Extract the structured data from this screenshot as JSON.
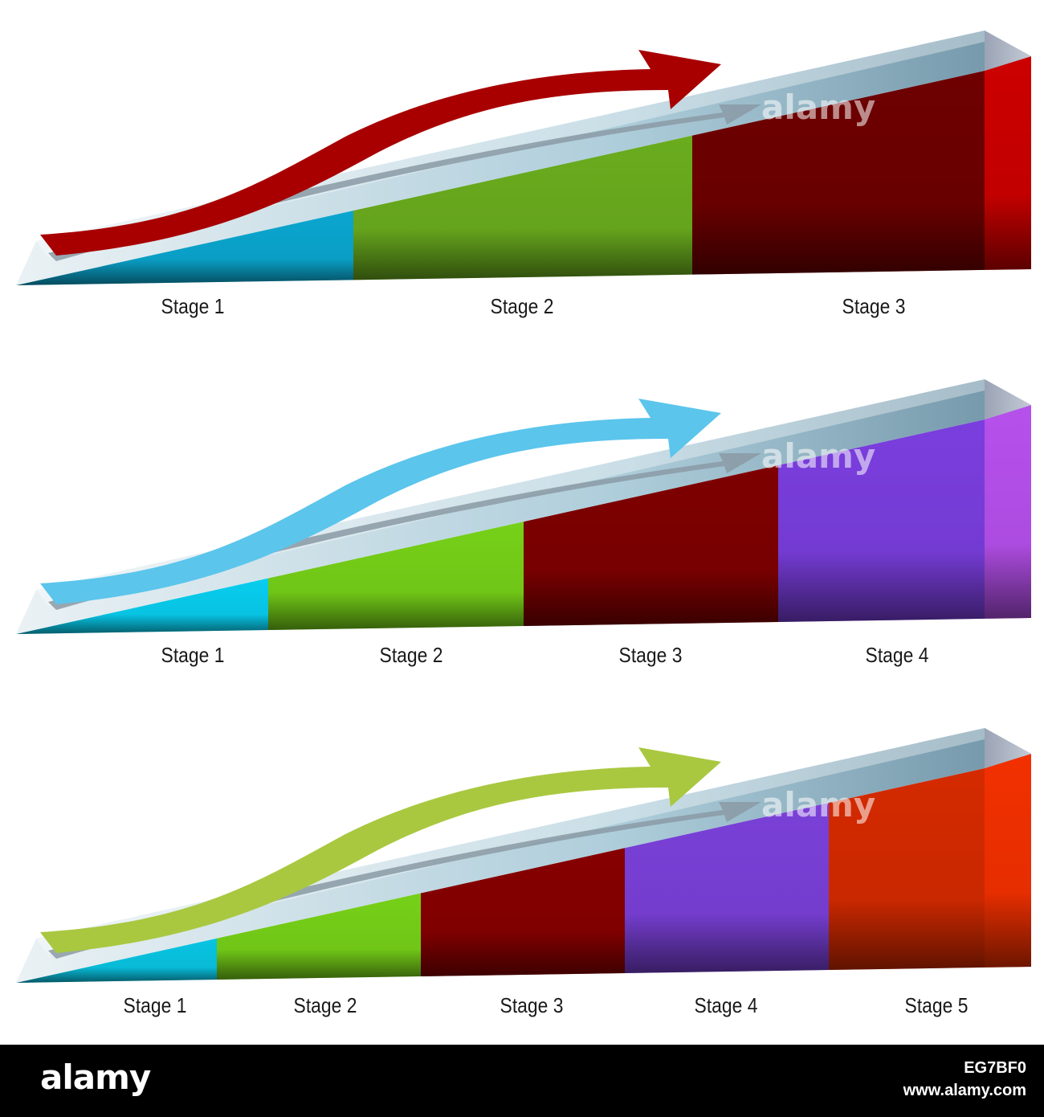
{
  "diagrams": [
    {
      "stages": [
        "Stage 1",
        "Stage 2",
        "Stage 3"
      ],
      "segment_colors": [
        "#0aa6cf",
        "#6aac1e",
        "#6e0000"
      ],
      "side_color": "#cc0000",
      "arrow_color": "#a80000"
    },
    {
      "stages": [
        "Stage 1",
        "Stage 2",
        "Stage 3",
        "Stage 4"
      ],
      "segment_colors": [
        "#08cdee",
        "#76d018",
        "#7e0000",
        "#7a3ede"
      ],
      "side_color": "#b650ec",
      "arrow_color": "#5bc5ec"
    },
    {
      "stages": [
        "Stage 1",
        "Stage 2",
        "Stage 3",
        "Stage 4",
        "Stage 5"
      ],
      "segment_colors": [
        "#08c4e2",
        "#76d018",
        "#860000",
        "#7a40d8",
        "#d42a00"
      ],
      "side_color": "#f23000",
      "arrow_color": "#a9c840"
    }
  ],
  "watermark": "alamy",
  "footer": {
    "logo": "alamy",
    "image_id": "EG7BF0",
    "url": "www.alamy.com"
  }
}
